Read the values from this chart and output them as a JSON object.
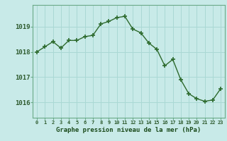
{
  "hours": [
    0,
    1,
    2,
    3,
    4,
    5,
    6,
    7,
    8,
    9,
    10,
    11,
    12,
    13,
    14,
    15,
    16,
    17,
    18,
    19,
    20,
    21,
    22,
    23
  ],
  "pressure": [
    1018.0,
    1018.2,
    1018.4,
    1018.15,
    1018.45,
    1018.45,
    1018.6,
    1018.65,
    1019.1,
    1019.2,
    1019.35,
    1019.4,
    1018.9,
    1018.75,
    1018.35,
    1018.1,
    1017.45,
    1017.7,
    1016.9,
    1016.35,
    1016.15,
    1016.05,
    1016.1,
    1016.55
  ],
  "bg_color": "#c8eae8",
  "grid_color": "#aad8d4",
  "line_color": "#2d6a2d",
  "marker_color": "#2d6a2d",
  "xlabel": "Graphe pression niveau de la mer (hPa)",
  "yticks": [
    1016,
    1017,
    1018,
    1019
  ],
  "xlim": [
    -0.5,
    23.5
  ],
  "ylim": [
    1015.4,
    1019.85
  ],
  "axis_color": "#6aaa88",
  "tick_color": "#2d5a2d",
  "xlabel_color": "#1a4a1a"
}
